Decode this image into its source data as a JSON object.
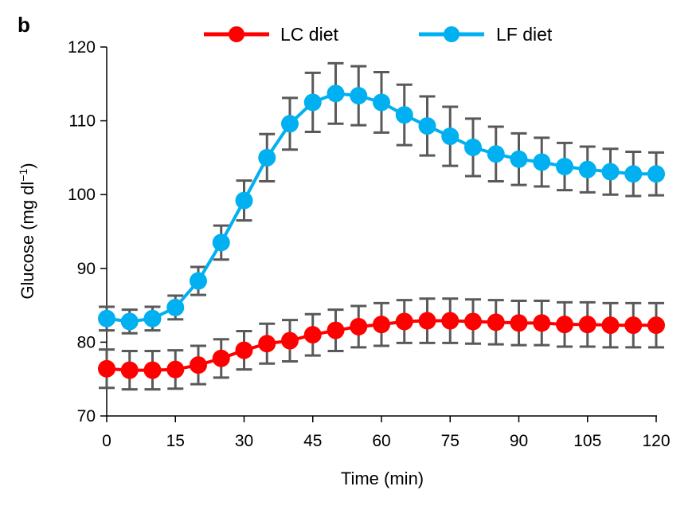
{
  "chart_data": {
    "type": "line",
    "panel_label": "b",
    "title": "",
    "xlabel": "Time (min)",
    "ylabel": "Glucose (mg dl",
    "ylabel_superscript": "−1",
    "ylabel_close": ")",
    "xlim": [
      0,
      120
    ],
    "ylim": [
      70,
      120
    ],
    "xticks": [
      0,
      15,
      30,
      45,
      60,
      75,
      90,
      105,
      120
    ],
    "yticks": [
      70,
      80,
      90,
      100,
      110,
      120
    ],
    "grid": false,
    "legend_position": "top",
    "x": [
      0,
      5,
      10,
      15,
      20,
      25,
      30,
      35,
      40,
      45,
      50,
      55,
      60,
      65,
      70,
      75,
      80,
      85,
      90,
      95,
      100,
      105,
      110,
      115,
      120
    ],
    "series": [
      {
        "name": "LC diet",
        "color": "#ff0000",
        "values": [
          76.4,
          76.2,
          76.2,
          76.3,
          76.9,
          77.8,
          78.9,
          79.8,
          80.2,
          81.0,
          81.6,
          82.1,
          82.4,
          82.8,
          82.9,
          82.9,
          82.8,
          82.7,
          82.6,
          82.6,
          82.4,
          82.4,
          82.3,
          82.3,
          82.3
        ],
        "error": [
          2.6,
          2.6,
          2.6,
          2.6,
          2.6,
          2.6,
          2.6,
          2.7,
          2.8,
          2.8,
          2.8,
          2.8,
          2.9,
          2.9,
          3.0,
          3.0,
          3.0,
          3.0,
          3.0,
          3.0,
          3.0,
          3.0,
          3.0,
          3.0,
          3.0
        ]
      },
      {
        "name": "LF diet",
        "color": "#00b0f0",
        "values": [
          83.2,
          82.8,
          83.2,
          84.7,
          88.3,
          93.5,
          99.2,
          105.0,
          109.6,
          112.5,
          113.7,
          113.4,
          112.5,
          110.8,
          109.3,
          107.9,
          106.4,
          105.5,
          104.8,
          104.4,
          103.8,
          103.4,
          103.1,
          102.8,
          102.8
        ],
        "error": [
          1.6,
          1.6,
          1.6,
          1.6,
          1.9,
          2.3,
          2.7,
          3.2,
          3.5,
          4.0,
          4.1,
          4.0,
          4.1,
          4.1,
          4.0,
          4.0,
          3.9,
          3.7,
          3.5,
          3.3,
          3.2,
          3.1,
          3.1,
          3.0,
          2.9
        ]
      }
    ],
    "error_bar_color": "#595959"
  }
}
